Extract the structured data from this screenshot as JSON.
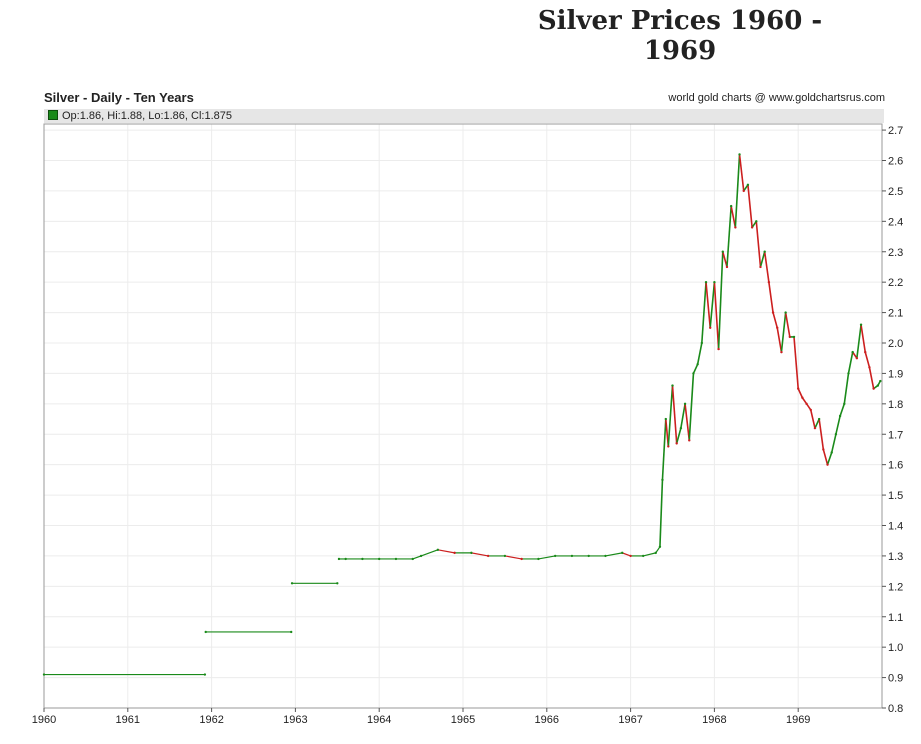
{
  "page": {
    "title": "Silver Prices 1960 - 1969"
  },
  "header": {
    "chart_title": "Silver - Daily - Ten Years",
    "credit": "world gold charts @ www.goldchartsrus.com"
  },
  "legend": {
    "text": "Op:1.86, Hi:1.88, Lo:1.86, Cl:1.875"
  },
  "colors": {
    "up": "#1a8a1a",
    "down": "#cc1f1f",
    "grid": "#ececec"
  },
  "chart_data": {
    "type": "line",
    "title": "Silver - Daily - Ten Years",
    "xlabel": "",
    "ylabel": "",
    "xlim": [
      1960.0,
      1970.0
    ],
    "ylim": [
      0.8,
      2.72
    ],
    "x_ticks": [
      "1960",
      "1961",
      "1962",
      "1963",
      "1964",
      "1965",
      "1966",
      "1967",
      "1968",
      "1969"
    ],
    "y_ticks": [
      "0.8",
      "0.9",
      "1.0",
      "1.1",
      "1.2",
      "1.3",
      "1.4",
      "1.5",
      "1.6",
      "1.7",
      "1.8",
      "1.9",
      "2.0",
      "2.1",
      "2.2",
      "2.3",
      "2.4",
      "2.5",
      "2.6",
      "2.7"
    ],
    "grid": true,
    "legend_position": "top-left",
    "last_bar": {
      "open": 1.86,
      "high": 1.88,
      "low": 1.86,
      "close": 1.875
    },
    "series": [
      {
        "x": [
          1960.0,
          1961.92,
          1961.93,
          1962.95,
          1962.96,
          1963.5,
          1963.52,
          1963.6,
          1963.8,
          1964.0,
          1964.2,
          1964.4,
          1964.5,
          1964.7,
          1964.9,
          1965.1,
          1965.3,
          1965.5,
          1965.7,
          1965.9,
          1966.1,
          1966.3,
          1966.5,
          1966.7,
          1966.9,
          1967.0,
          1967.15,
          1967.3,
          1967.35,
          1967.38,
          1967.42,
          1967.45,
          1967.5,
          1967.55,
          1967.6,
          1967.65,
          1967.7,
          1967.75,
          1967.8,
          1967.85,
          1967.9,
          1967.95,
          1968.0,
          1968.05,
          1968.1,
          1968.15,
          1968.2,
          1968.25,
          1968.3,
          1968.35,
          1968.4,
          1968.45,
          1968.5,
          1968.55,
          1968.6,
          1968.65,
          1968.7,
          1968.75,
          1968.8,
          1968.85,
          1968.9,
          1968.95,
          1969.0,
          1969.05,
          1969.1,
          1969.15,
          1969.2,
          1969.25,
          1969.3,
          1969.35,
          1969.4,
          1969.45,
          1969.5,
          1969.55,
          1969.6,
          1969.65,
          1969.7,
          1969.75,
          1969.8,
          1969.85,
          1969.9,
          1969.95,
          1969.98
        ],
        "values": [
          0.91,
          0.91,
          1.05,
          1.05,
          1.21,
          1.21,
          1.29,
          1.29,
          1.29,
          1.29,
          1.29,
          1.29,
          1.3,
          1.32,
          1.31,
          1.31,
          1.3,
          1.3,
          1.29,
          1.29,
          1.3,
          1.3,
          1.3,
          1.3,
          1.31,
          1.3,
          1.3,
          1.31,
          1.33,
          1.55,
          1.75,
          1.66,
          1.86,
          1.67,
          1.72,
          1.8,
          1.68,
          1.9,
          1.93,
          2.0,
          2.2,
          2.05,
          2.2,
          1.98,
          2.3,
          2.25,
          2.45,
          2.38,
          2.62,
          2.5,
          2.52,
          2.38,
          2.4,
          2.25,
          2.3,
          2.2,
          2.1,
          2.05,
          1.97,
          2.1,
          2.02,
          2.02,
          1.85,
          1.82,
          1.8,
          1.78,
          1.72,
          1.75,
          1.65,
          1.6,
          1.64,
          1.7,
          1.76,
          1.8,
          1.9,
          1.97,
          1.95,
          2.06,
          1.97,
          1.92,
          1.85,
          1.86,
          1.875
        ]
      }
    ]
  }
}
